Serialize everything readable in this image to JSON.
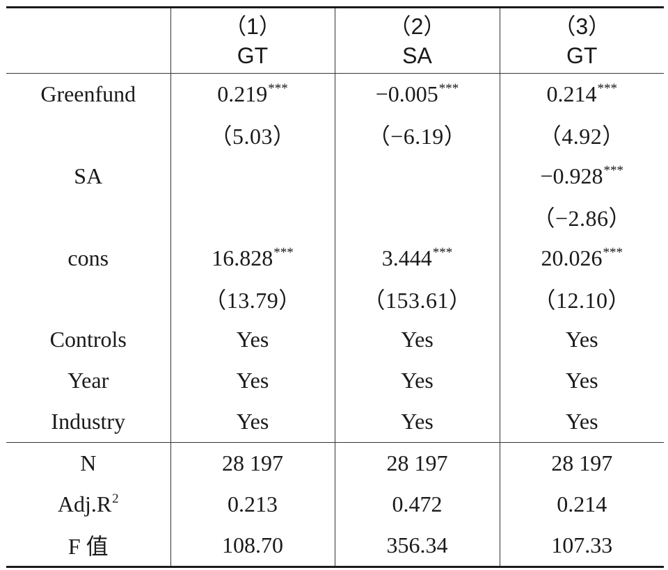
{
  "table": {
    "columns": [
      {
        "number": "（1）",
        "variable": "GT"
      },
      {
        "number": "（2）",
        "variable": "SA"
      },
      {
        "number": "（3）",
        "variable": "GT"
      }
    ],
    "rows": [
      {
        "label": "Greenfund",
        "cells": [
          {
            "value": "0.219",
            "sig": "***"
          },
          {
            "value": "−0.005",
            "sig": "***"
          },
          {
            "value": "0.214",
            "sig": "***"
          }
        ]
      },
      {
        "label": "",
        "cells": [
          {
            "value": "（5.03）",
            "sig": ""
          },
          {
            "value": "（−6.19）",
            "sig": ""
          },
          {
            "value": "（4.92）",
            "sig": ""
          }
        ]
      },
      {
        "label": "SA",
        "cells": [
          {
            "value": "",
            "sig": ""
          },
          {
            "value": "",
            "sig": ""
          },
          {
            "value": "−0.928",
            "sig": "***"
          }
        ]
      },
      {
        "label": "",
        "cells": [
          {
            "value": "",
            "sig": ""
          },
          {
            "value": "",
            "sig": ""
          },
          {
            "value": "（−2.86）",
            "sig": ""
          }
        ]
      },
      {
        "label": "cons",
        "cells": [
          {
            "value": "16.828",
            "sig": "***"
          },
          {
            "value": "3.444",
            "sig": "***"
          },
          {
            "value": "20.026",
            "sig": "***"
          }
        ]
      },
      {
        "label": "",
        "cells": [
          {
            "value": "（13.79）",
            "sig": ""
          },
          {
            "value": "（153.61）",
            "sig": ""
          },
          {
            "value": "（12.10）",
            "sig": ""
          }
        ]
      },
      {
        "label": "Controls",
        "cells": [
          {
            "value": "Yes",
            "sig": ""
          },
          {
            "value": "Yes",
            "sig": ""
          },
          {
            "value": "Yes",
            "sig": ""
          }
        ]
      },
      {
        "label": "Year",
        "cells": [
          {
            "value": "Yes",
            "sig": ""
          },
          {
            "value": "Yes",
            "sig": ""
          },
          {
            "value": "Yes",
            "sig": ""
          }
        ]
      },
      {
        "label": "Industry",
        "cells": [
          {
            "value": "Yes",
            "sig": ""
          },
          {
            "value": "Yes",
            "sig": ""
          },
          {
            "value": "Yes",
            "sig": ""
          }
        ]
      },
      {
        "label": "N",
        "cells": [
          {
            "value": "28 197",
            "sig": ""
          },
          {
            "value": "28 197",
            "sig": ""
          },
          {
            "value": "28 197",
            "sig": ""
          }
        ]
      },
      {
        "label": "Adj.R",
        "label_sup": "2",
        "cells": [
          {
            "value": "0.213",
            "sig": ""
          },
          {
            "value": "0.472",
            "sig": ""
          },
          {
            "value": "0.214",
            "sig": ""
          }
        ]
      },
      {
        "label": "F 值",
        "cells": [
          {
            "value": "108.70",
            "sig": ""
          },
          {
            "value": "356.34",
            "sig": ""
          },
          {
            "value": "107.33",
            "sig": ""
          }
        ]
      }
    ]
  }
}
